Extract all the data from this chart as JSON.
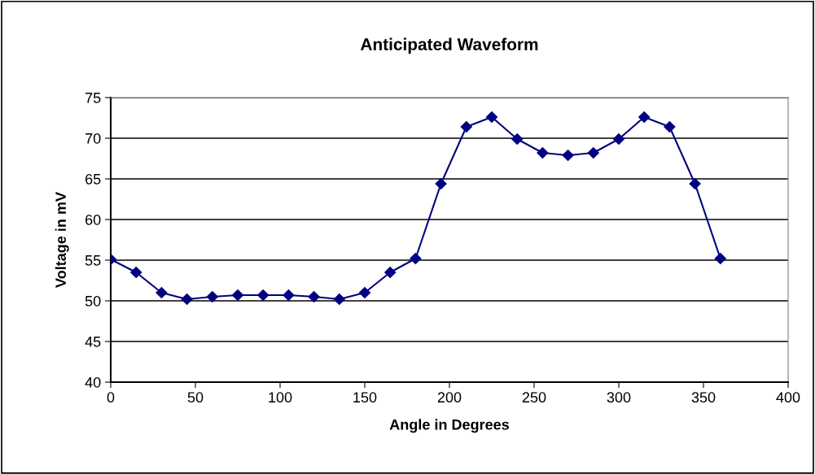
{
  "chart_data": {
    "type": "line",
    "title": "Anticipated Waveform",
    "xlabel": "Angle in Degrees",
    "ylabel": "Voltage in mV",
    "x": [
      0,
      15,
      30,
      45,
      60,
      75,
      90,
      105,
      120,
      135,
      150,
      165,
      180,
      195,
      210,
      225,
      240,
      255,
      270,
      285,
      300,
      315,
      330,
      345,
      360
    ],
    "series": [
      {
        "color": "#000080",
        "values": [
          55.1,
          53.5,
          51.0,
          50.2,
          50.5,
          50.7,
          50.7,
          50.7,
          50.5,
          50.2,
          51.0,
          53.5,
          55.2,
          64.4,
          71.4,
          72.6,
          69.9,
          68.2,
          67.9,
          68.2,
          69.9,
          72.6,
          71.4,
          64.4,
          55.2
        ]
      }
    ],
    "xlim": [
      0,
      400
    ],
    "xticks": [
      0,
      50,
      100,
      150,
      200,
      250,
      300,
      350,
      400
    ],
    "ylim": [
      40,
      75
    ],
    "yticks": [
      40,
      45,
      50,
      55,
      60,
      65,
      70,
      75
    ],
    "grid": "y",
    "marker": "diamond",
    "line_style": "solid"
  }
}
